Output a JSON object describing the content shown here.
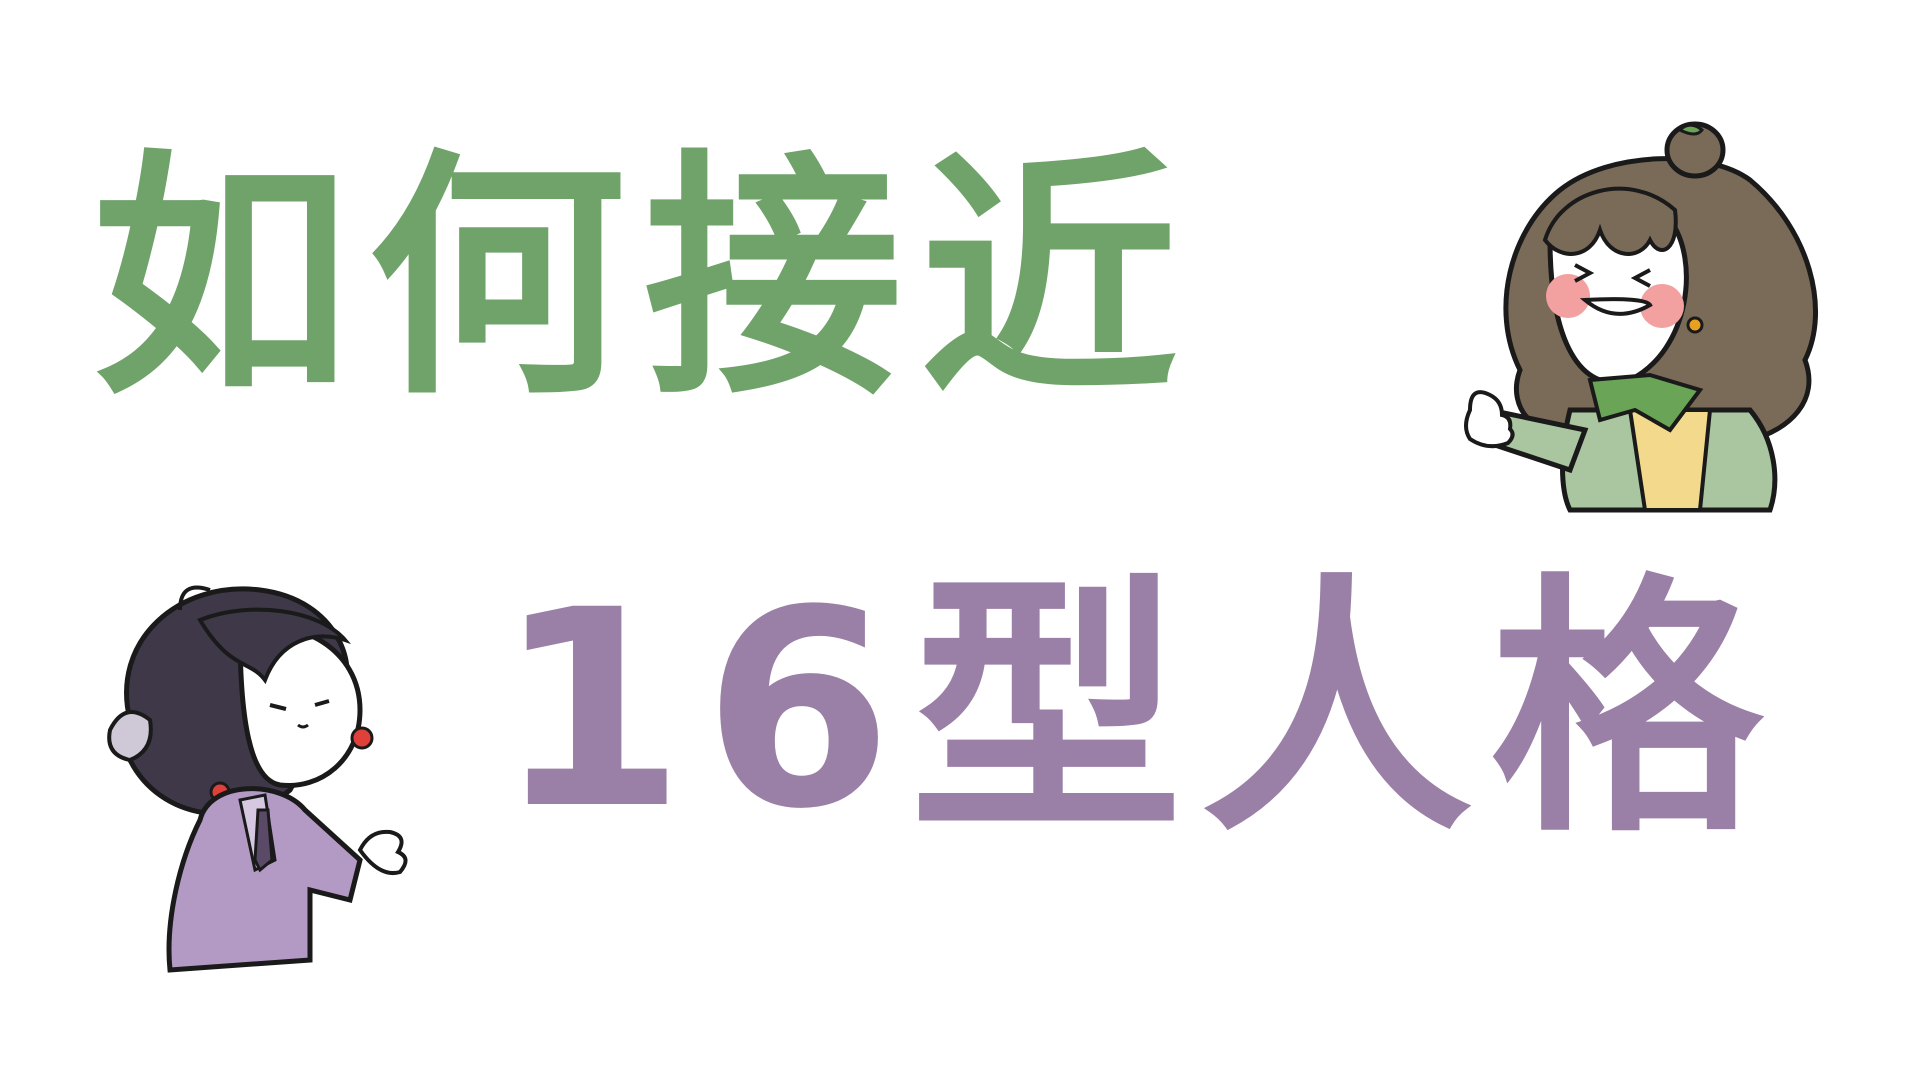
{
  "title": {
    "line1": "如何接近",
    "line2": "16型人格"
  },
  "colors": {
    "background": "#ffffff",
    "line1_text": "#6fa36a",
    "line2_text": "#9a7fa6",
    "outline": "#1a1a1a",
    "green_char_hair": "#7a6a58",
    "green_char_cardigan": "#a9c6a0",
    "green_char_scarf": "#6aa456",
    "green_char_shirt": "#f2d98c",
    "green_char_cheeks": "#f3a0a0",
    "purple_char_hair": "#3e3848",
    "purple_char_jacket": "#b39ac4",
    "purple_char_earring": "#e0403a"
  },
  "illustrations": [
    {
      "name": "green-chibi-character",
      "pose": "thumbs-up"
    },
    {
      "name": "purple-chibi-character",
      "pose": "pointing"
    }
  ]
}
